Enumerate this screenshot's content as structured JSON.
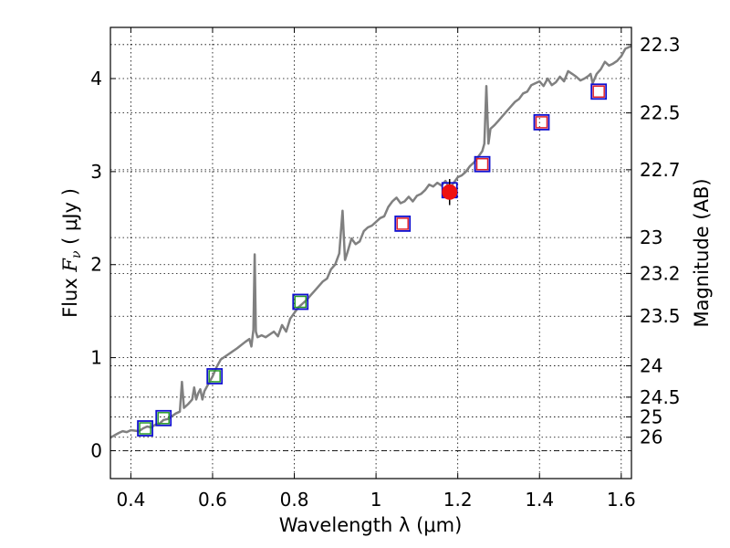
{
  "chart_data": {
    "type": "scatter",
    "xlabel": "Wavelength  λ (μm)",
    "ylabel": {
      "prefix": "Flux  ",
      "symbol": "F",
      "subscript": "ν",
      "unit": "  ( μJy )"
    },
    "y2label": "Magnitude (AB)",
    "xlim": [
      0.35,
      1.625
    ],
    "ylim": [
      -0.3,
      4.55
    ],
    "grid": true,
    "x_ticks": [
      {
        "value": 0.4,
        "label": "0.4"
      },
      {
        "value": 0.6,
        "label": "0.6"
      },
      {
        "value": 0.8,
        "label": "0.8"
      },
      {
        "value": 1.0,
        "label": "1"
      },
      {
        "value": 1.2,
        "label": "1.2"
      },
      {
        "value": 1.4,
        "label": "1.4"
      },
      {
        "value": 1.6,
        "label": "1.6"
      }
    ],
    "y_ticks": [
      {
        "value": 0,
        "label": "0"
      },
      {
        "value": 1,
        "label": "1"
      },
      {
        "value": 2,
        "label": "2"
      },
      {
        "value": 3,
        "label": "3"
      },
      {
        "value": 4,
        "label": "4"
      }
    ],
    "magnitude_ticks": [
      {
        "value": 22.3,
        "label": "22.3"
      },
      {
        "value": 22.5,
        "label": "22.5"
      },
      {
        "value": 22.7,
        "label": "22.7"
      },
      {
        "value": 23.0,
        "label": "23"
      },
      {
        "value": 23.2,
        "label": "23.2"
      },
      {
        "value": 23.5,
        "label": "23.5"
      },
      {
        "value": 24.0,
        "label": "24"
      },
      {
        "value": 24.5,
        "label": "24.5"
      },
      {
        "value": 25.0,
        "label": "25"
      },
      {
        "value": 26.0,
        "label": "26"
      }
    ],
    "zero_line": {
      "y": 0
    },
    "series": [
      {
        "name": "model spectrum",
        "kind": "line",
        "color": "#808080",
        "points": [
          [
            0.35,
            0.14
          ],
          [
            0.37,
            0.19
          ],
          [
            0.38,
            0.21
          ],
          [
            0.39,
            0.2
          ],
          [
            0.4,
            0.22
          ],
          [
            0.42,
            0.21
          ],
          [
            0.43,
            0.24
          ],
          [
            0.44,
            0.26
          ],
          [
            0.45,
            0.25
          ],
          [
            0.46,
            0.28
          ],
          [
            0.47,
            0.29
          ],
          [
            0.48,
            0.33
          ],
          [
            0.49,
            0.34
          ],
          [
            0.5,
            0.37
          ],
          [
            0.51,
            0.4
          ],
          [
            0.52,
            0.42
          ],
          [
            0.525,
            0.74
          ],
          [
            0.53,
            0.46
          ],
          [
            0.54,
            0.5
          ],
          [
            0.55,
            0.55
          ],
          [
            0.555,
            0.68
          ],
          [
            0.56,
            0.55
          ],
          [
            0.565,
            0.62
          ],
          [
            0.57,
            0.66
          ],
          [
            0.575,
            0.55
          ],
          [
            0.58,
            0.64
          ],
          [
            0.59,
            0.72
          ],
          [
            0.6,
            0.8
          ],
          [
            0.61,
            0.9
          ],
          [
            0.62,
            0.98
          ],
          [
            0.64,
            1.04
          ],
          [
            0.66,
            1.1
          ],
          [
            0.68,
            1.17
          ],
          [
            0.69,
            1.2
          ],
          [
            0.695,
            1.12
          ],
          [
            0.7,
            1.3
          ],
          [
            0.703,
            2.11
          ],
          [
            0.706,
            1.28
          ],
          [
            0.71,
            1.22
          ],
          [
            0.72,
            1.24
          ],
          [
            0.73,
            1.22
          ],
          [
            0.74,
            1.25
          ],
          [
            0.75,
            1.28
          ],
          [
            0.76,
            1.23
          ],
          [
            0.77,
            1.35
          ],
          [
            0.78,
            1.28
          ],
          [
            0.79,
            1.42
          ],
          [
            0.8,
            1.48
          ],
          [
            0.81,
            1.54
          ],
          [
            0.82,
            1.58
          ],
          [
            0.83,
            1.62
          ],
          [
            0.84,
            1.67
          ],
          [
            0.85,
            1.72
          ],
          [
            0.86,
            1.77
          ],
          [
            0.87,
            1.82
          ],
          [
            0.88,
            1.85
          ],
          [
            0.89,
            1.95
          ],
          [
            0.9,
            2.0
          ],
          [
            0.91,
            2.12
          ],
          [
            0.918,
            2.58
          ],
          [
            0.924,
            2.05
          ],
          [
            0.93,
            2.13
          ],
          [
            0.94,
            2.28
          ],
          [
            0.95,
            2.22
          ],
          [
            0.96,
            2.25
          ],
          [
            0.97,
            2.36
          ],
          [
            0.98,
            2.4
          ],
          [
            0.99,
            2.42
          ],
          [
            1.0,
            2.46
          ],
          [
            1.01,
            2.5
          ],
          [
            1.02,
            2.52
          ],
          [
            1.03,
            2.62
          ],
          [
            1.04,
            2.68
          ],
          [
            1.05,
            2.72
          ],
          [
            1.06,
            2.66
          ],
          [
            1.07,
            2.68
          ],
          [
            1.08,
            2.73
          ],
          [
            1.09,
            2.68
          ],
          [
            1.1,
            2.74
          ],
          [
            1.11,
            2.76
          ],
          [
            1.12,
            2.8
          ],
          [
            1.13,
            2.86
          ],
          [
            1.14,
            2.84
          ],
          [
            1.15,
            2.88
          ],
          [
            1.16,
            2.85
          ],
          [
            1.17,
            2.9
          ],
          [
            1.18,
            2.82
          ],
          [
            1.19,
            2.88
          ],
          [
            1.2,
            2.94
          ],
          [
            1.21,
            2.96
          ],
          [
            1.22,
            3.0
          ],
          [
            1.23,
            3.06
          ],
          [
            1.24,
            3.1
          ],
          [
            1.25,
            3.16
          ],
          [
            1.26,
            3.22
          ],
          [
            1.265,
            3.3
          ],
          [
            1.27,
            3.92
          ],
          [
            1.275,
            3.3
          ],
          [
            1.28,
            3.46
          ],
          [
            1.29,
            3.5
          ],
          [
            1.3,
            3.55
          ],
          [
            1.31,
            3.6
          ],
          [
            1.32,
            3.65
          ],
          [
            1.33,
            3.7
          ],
          [
            1.34,
            3.75
          ],
          [
            1.35,
            3.78
          ],
          [
            1.36,
            3.84
          ],
          [
            1.37,
            3.86
          ],
          [
            1.38,
            3.93
          ],
          [
            1.39,
            3.95
          ],
          [
            1.4,
            3.97
          ],
          [
            1.41,
            3.92
          ],
          [
            1.42,
            4.0
          ],
          [
            1.43,
            3.93
          ],
          [
            1.44,
            3.96
          ],
          [
            1.45,
            4.02
          ],
          [
            1.46,
            3.97
          ],
          [
            1.47,
            4.08
          ],
          [
            1.48,
            4.05
          ],
          [
            1.49,
            4.02
          ],
          [
            1.5,
            3.98
          ],
          [
            1.51,
            4.0
          ],
          [
            1.52,
            4.03
          ],
          [
            1.525,
            4.05
          ],
          [
            1.53,
            3.95
          ],
          [
            1.54,
            4.05
          ],
          [
            1.55,
            4.1
          ],
          [
            1.56,
            4.18
          ],
          [
            1.57,
            4.14
          ],
          [
            1.58,
            4.16
          ],
          [
            1.59,
            4.19
          ],
          [
            1.6,
            4.24
          ],
          [
            1.61,
            4.32
          ],
          [
            1.625,
            4.35
          ]
        ]
      },
      {
        "name": "model photometry (green)",
        "kind": "square-marker",
        "color": "#2a9a2a",
        "points": [
          [
            0.435,
            0.24
          ],
          [
            0.48,
            0.35
          ],
          [
            0.605,
            0.8
          ],
          [
            0.815,
            1.6
          ]
        ]
      },
      {
        "name": "model photometry (red)",
        "kind": "square-marker",
        "color": "#e0202a",
        "points": [
          [
            1.065,
            2.44
          ],
          [
            1.26,
            3.08
          ],
          [
            1.405,
            3.53
          ],
          [
            1.545,
            3.86
          ]
        ]
      },
      {
        "name": "observed photometry",
        "kind": "square-marker",
        "color": "#1010d0",
        "points": [
          [
            0.435,
            0.24
          ],
          [
            0.48,
            0.35
          ],
          [
            0.605,
            0.8
          ],
          [
            0.815,
            1.6
          ],
          [
            1.065,
            2.44
          ],
          [
            1.18,
            2.8
          ],
          [
            1.26,
            3.08
          ],
          [
            1.405,
            3.53
          ],
          [
            1.545,
            3.86
          ]
        ]
      },
      {
        "name": "measured point",
        "kind": "circle-errorbar",
        "color": "#ee1111",
        "points": [
          [
            1.18,
            2.78,
            0.14
          ]
        ]
      }
    ]
  }
}
